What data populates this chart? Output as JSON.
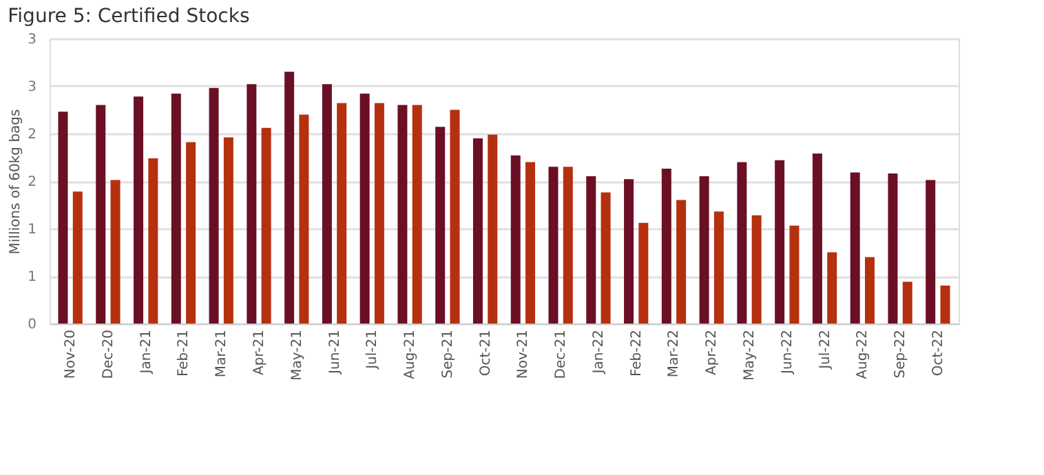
{
  "chart_data": {
    "type": "bar",
    "title": "Figure 5: Certified Stocks",
    "ylabel": "Millions of 60kg bags",
    "categories": [
      "Nov-20",
      "Dec-20",
      "Jan-21",
      "Feb-21",
      "Mar-21",
      "Apr-21",
      "May-21",
      "Jun-21",
      "Jul-21",
      "Aug-21",
      "Sep-21",
      "Oct-21",
      "Nov-21",
      "Dec-21",
      "Jan-22",
      "Feb-22",
      "Mar-22",
      "Apr-22",
      "May-22",
      "Jun-22",
      "Jul-22",
      "Aug-22",
      "Sep-22",
      "Oct-22"
    ],
    "series": [
      {
        "color": "#6b0f24",
        "values": [
          2.23,
          2.3,
          2.39,
          2.42,
          2.48,
          2.52,
          2.65,
          2.52,
          2.42,
          2.3,
          2.07,
          1.95,
          1.77,
          1.65,
          1.55,
          1.52,
          1.63,
          1.55,
          1.7,
          1.72,
          1.79,
          1.59,
          1.58,
          1.51
        ]
      },
      {
        "color": "#b5300f",
        "values": [
          1.39,
          1.51,
          1.74,
          1.91,
          1.96,
          2.06,
          2.2,
          2.32,
          2.32,
          2.3,
          2.25,
          1.99,
          1.7,
          1.65,
          1.38,
          1.06,
          1.3,
          1.18,
          1.14,
          1.03,
          0.75,
          0.7,
          0.44,
          0.4
        ]
      }
    ],
    "ylim": [
      0,
      3
    ],
    "yticks": [
      0,
      {
        "value": 0.5,
        "label": "1"
      },
      1,
      {
        "value": 1.5,
        "label": "2"
      },
      2,
      {
        "value": 2.5,
        "label": "3"
      },
      3
    ],
    "grid": "y"
  }
}
